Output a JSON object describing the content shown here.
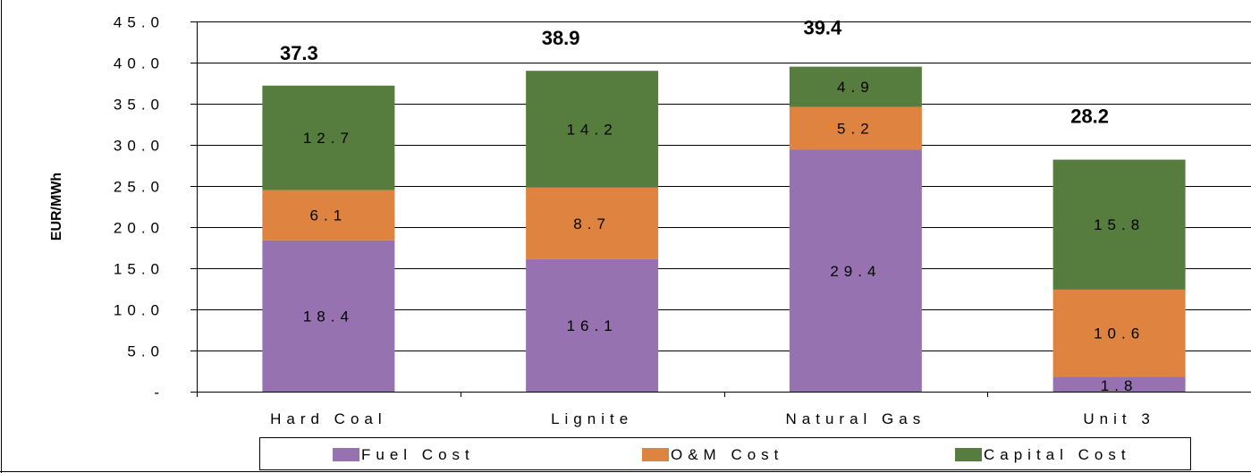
{
  "chart_data": {
    "type": "bar",
    "stacked": true,
    "categories": [
      "Hard Coal",
      "Lignite",
      "Natural Gas",
      "Unit 3"
    ],
    "series": [
      {
        "name": "Fuel Cost",
        "values": [
          18.4,
          16.1,
          29.4,
          1.8
        ],
        "labels": [
          "18.4",
          "16.1",
          "29.4",
          "1.8"
        ],
        "color": "#9673b0"
      },
      {
        "name": "O&M Cost",
        "values": [
          6.1,
          8.7,
          5.2,
          10.6
        ],
        "labels": [
          "6.1",
          "8.7",
          "5.2",
          "10.6"
        ],
        "color": "#de8440"
      },
      {
        "name": "Capital Cost",
        "values": [
          12.7,
          14.2,
          4.9,
          15.8
        ],
        "labels": [
          "12.7",
          "14.2",
          "4.9",
          "15.8"
        ],
        "color": "#567d3e"
      }
    ],
    "totals": [
      37.3,
      38.9,
      39.4,
      28.2
    ],
    "total_labels": [
      "37.3",
      "38.9",
      "39.4",
      "28.2"
    ],
    "ylabel": "EUR/MWh",
    "ylim": [
      0,
      45
    ],
    "yticks": [
      {
        "value": 0,
        "label": "-"
      },
      {
        "value": 5,
        "label": "5.0"
      },
      {
        "value": 10,
        "label": "10.0"
      },
      {
        "value": 15,
        "label": "15.0"
      },
      {
        "value": 20,
        "label": "20.0"
      },
      {
        "value": 25,
        "label": "25.0"
      },
      {
        "value": 30,
        "label": "30.0"
      },
      {
        "value": 35,
        "label": "35.0"
      },
      {
        "value": 40,
        "label": "40.0"
      },
      {
        "value": 45,
        "label": "45.0"
      }
    ],
    "grid": true,
    "legend_position": "bottom"
  }
}
